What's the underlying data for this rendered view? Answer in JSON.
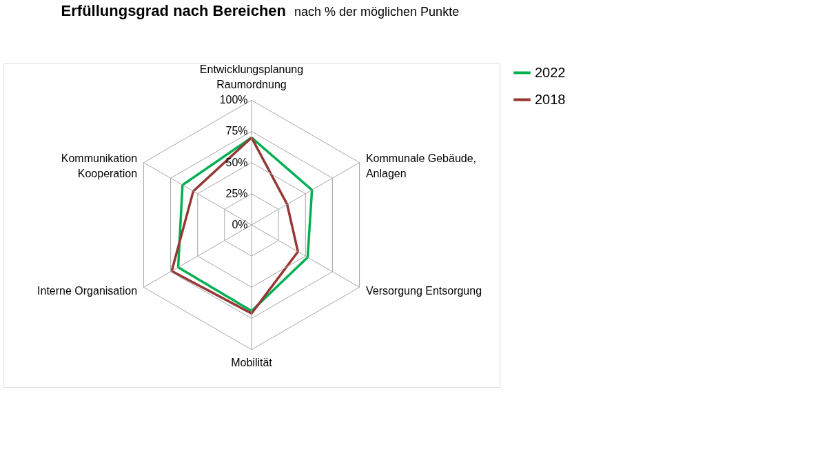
{
  "chart_data": {
    "type": "radar",
    "title": "Erfüllungsgrad nach Bereichen",
    "subtitle": "nach % der möglichen Punkte",
    "categories": [
      "Entwicklungsplanung\nRaumordnung",
      "Kommunale Gebäude,\nAnlagen",
      "Versorgung Entsorgung",
      "Mobilität",
      "Interne Organisation",
      "Kommunikation\nKooperation"
    ],
    "series": [
      {
        "name": "2022",
        "color": "#00b050",
        "values": [
          70,
          56,
          52,
          69,
          68,
          64
        ]
      },
      {
        "name": "2018",
        "color": "#953735",
        "values": [
          70,
          33,
          43,
          71,
          74,
          54
        ]
      }
    ],
    "ylim": [
      0,
      100
    ],
    "yticks": [
      {
        "value": 0,
        "label": "0%"
      },
      {
        "value": 25,
        "label": "25%"
      },
      {
        "value": 50,
        "label": "50%"
      },
      {
        "value": 75,
        "label": "75%"
      },
      {
        "value": 100,
        "label": "100%"
      }
    ],
    "grid": true,
    "legend": "right",
    "marker": "none",
    "line_style": "solid"
  }
}
